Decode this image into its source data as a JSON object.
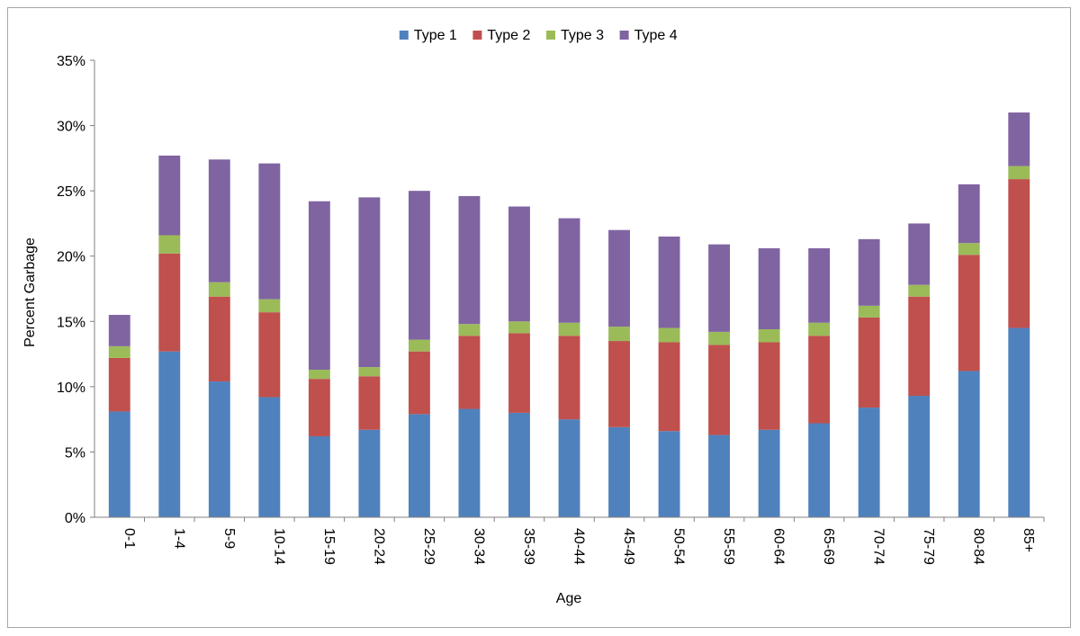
{
  "chart_data": {
    "type": "bar",
    "stacked": true,
    "title": "",
    "xlabel": "Age",
    "ylabel": "Percent Garbage",
    "ylim": [
      0,
      35
    ],
    "yticks": [
      0,
      5,
      10,
      15,
      20,
      25,
      30,
      35
    ],
    "ytick_format": "percent",
    "grid": false,
    "legend": "top-center",
    "categories": [
      "0-1",
      "1-4",
      "5-9",
      "10-14",
      "15-19",
      "20-24",
      "25-29",
      "30-34",
      "35-39",
      "40-44",
      "45-49",
      "50-54",
      "55-59",
      "60-64",
      "65-69",
      "70-74",
      "75-79",
      "80-84",
      "85+"
    ],
    "series": [
      {
        "name": "Type 1",
        "color": "#4f81bd",
        "values": [
          8.1,
          12.7,
          10.4,
          9.2,
          6.2,
          6.7,
          7.9,
          8.3,
          8.0,
          7.5,
          6.9,
          6.6,
          6.3,
          6.7,
          7.2,
          8.4,
          9.3,
          11.2,
          14.5
        ]
      },
      {
        "name": "Type 2",
        "color": "#c0504d",
        "values": [
          4.1,
          7.5,
          6.5,
          6.5,
          4.4,
          4.1,
          4.8,
          5.6,
          6.1,
          6.4,
          6.6,
          6.8,
          6.9,
          6.7,
          6.7,
          6.9,
          7.6,
          8.9,
          11.4
        ]
      },
      {
        "name": "Type 3",
        "color": "#9bbb59",
        "values": [
          0.9,
          1.4,
          1.1,
          1.0,
          0.7,
          0.7,
          0.9,
          0.9,
          0.9,
          1.0,
          1.1,
          1.1,
          1.0,
          1.0,
          1.0,
          0.9,
          0.9,
          0.9,
          1.0
        ]
      },
      {
        "name": "Type 4",
        "color": "#8064a2",
        "values": [
          2.4,
          6.1,
          9.4,
          10.4,
          12.9,
          13.0,
          11.4,
          9.8,
          8.8,
          8.0,
          7.4,
          7.0,
          6.7,
          6.2,
          5.7,
          5.1,
          4.7,
          4.5,
          4.1
        ]
      }
    ]
  }
}
